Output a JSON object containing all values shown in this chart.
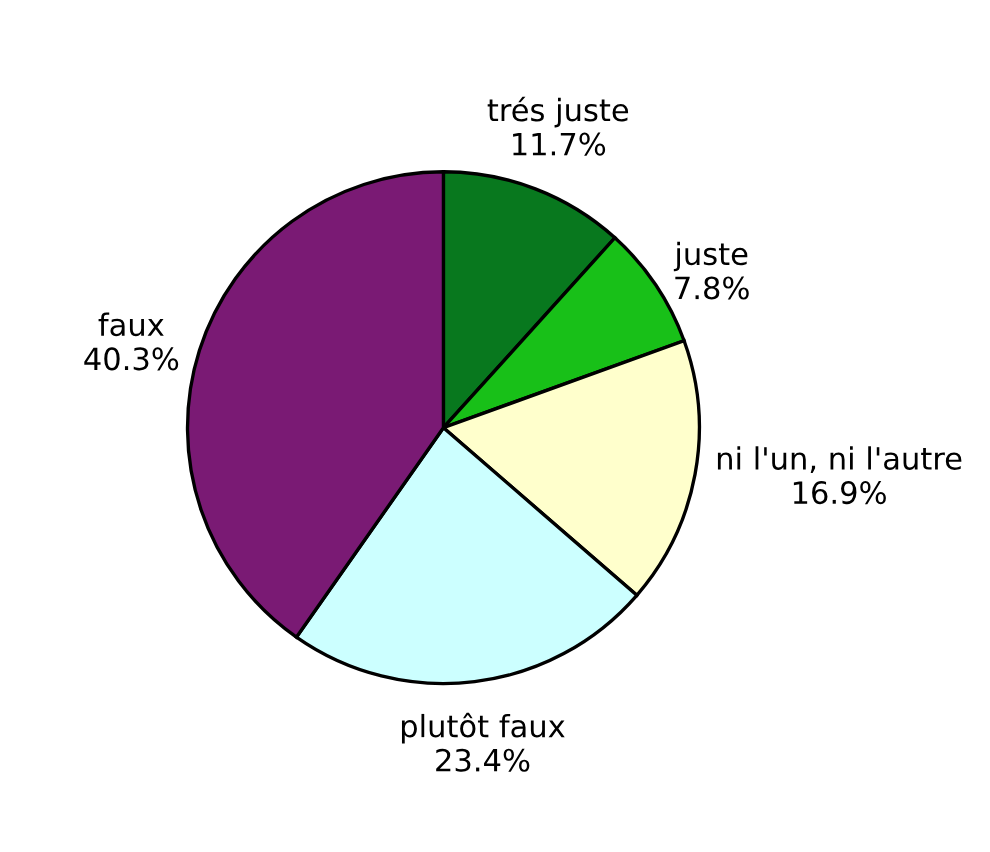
{
  "chart_data": {
    "type": "pie",
    "categories": [
      "trés juste",
      "juste",
      "ni l'un, ni l'autre",
      "plutôt faux",
      "faux"
    ],
    "values": [
      11.7,
      7.8,
      16.9,
      23.4,
      40.3
    ],
    "value_labels": [
      "11.7%",
      "7.8%",
      "16.9%",
      "23.4%",
      "40.3%"
    ],
    "colors": [
      "#08781e",
      "#18c018",
      "#ffffcc",
      "#ccffff",
      "#7a1a74"
    ],
    "legend": false
  }
}
